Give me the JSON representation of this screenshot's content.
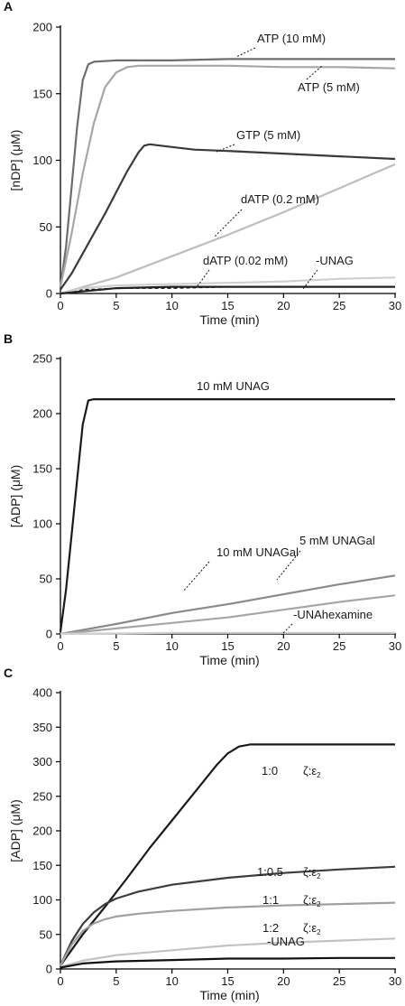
{
  "chart_data": [
    {
      "panel": "A",
      "type": "line",
      "xlabel": "Time (min)",
      "ylabel": "[nDP] (μM)",
      "xlim": [
        0,
        30
      ],
      "ylim": [
        0,
        200
      ],
      "xticks": [
        0,
        5,
        10,
        15,
        20,
        25,
        30
      ],
      "yticks": [
        0,
        50,
        100,
        150,
        200
      ],
      "series": [
        {
          "name": "ATP (10 mM)",
          "color": "#6e6e6e",
          "x": [
            0,
            0.5,
            1,
            1.5,
            2,
            2.5,
            3,
            5,
            10,
            15,
            20,
            25,
            30
          ],
          "y": [
            5,
            35,
            80,
            125,
            160,
            172,
            174,
            175,
            175,
            176,
            176,
            176,
            176
          ]
        },
        {
          "name": "ATP (5 mM)",
          "color": "#a6a6a6",
          "x": [
            0,
            1,
            2,
            3,
            4,
            5,
            6,
            7,
            10,
            15,
            20,
            25,
            30
          ],
          "y": [
            5,
            45,
            90,
            128,
            155,
            166,
            170,
            171,
            171,
            171,
            170,
            170,
            169
          ]
        },
        {
          "name": "GTP (5 mM)",
          "color": "#3a3a3a",
          "x": [
            0,
            1,
            2,
            3,
            4,
            5,
            6,
            7,
            7.5,
            8,
            9,
            10,
            12,
            15,
            20,
            25,
            30
          ],
          "y": [
            3,
            15,
            30,
            45,
            60,
            76,
            92,
            106,
            111,
            112,
            111,
            110,
            108,
            107,
            105,
            103,
            101
          ]
        },
        {
          "name": "dATP (0.2 mM)",
          "color": "#bdbdbd",
          "x": [
            0,
            5,
            10,
            15,
            20,
            25,
            30
          ],
          "y": [
            0,
            12,
            28,
            44,
            61,
            79,
            97
          ]
        },
        {
          "name": "dATP (0.02 mM)",
          "color": "#111111",
          "dashed": true,
          "x": [
            0,
            1,
            2,
            3,
            5,
            10,
            15,
            20,
            25,
            30
          ],
          "y": [
            0,
            2,
            3,
            3,
            4,
            4,
            5,
            5,
            5,
            5
          ]
        },
        {
          "name": "-UNAG",
          "color": "#cfcfcf",
          "x": [
            0,
            2,
            5,
            10,
            15,
            20,
            25,
            30
          ],
          "y": [
            0,
            4,
            6,
            7,
            8,
            9,
            11,
            12
          ]
        },
        {
          "name": "",
          "color": "#222222",
          "x": [
            0,
            5,
            10,
            15,
            20,
            25,
            30
          ],
          "y": [
            0,
            4,
            5,
            5,
            5,
            5,
            5
          ]
        }
      ],
      "annotations": [
        "ATP (10 mM)",
        "ATP (5 mM)",
        "GTP (5 mM)",
        "dATP (0.2 mM)",
        "dATP (0.02 mM)",
        "-UNAG"
      ]
    },
    {
      "panel": "B",
      "type": "line",
      "xlabel": "Time (min)",
      "ylabel": "[ADP] (μM)",
      "xlim": [
        0,
        30
      ],
      "ylim": [
        0,
        250
      ],
      "xticks": [
        0,
        5,
        10,
        15,
        20,
        25,
        30
      ],
      "yticks": [
        0,
        50,
        100,
        150,
        200,
        250
      ],
      "series": [
        {
          "name": "10 mM UNAG",
          "color": "#1a1a1a",
          "x": [
            0,
            0.5,
            1,
            1.5,
            2,
            2.5,
            3,
            5,
            10,
            15,
            20,
            25,
            30
          ],
          "y": [
            2,
            40,
            90,
            140,
            190,
            212,
            213,
            213,
            213,
            213,
            213,
            213,
            213
          ]
        },
        {
          "name": "5 mM UNAGal",
          "color": "#8a8a8a",
          "x": [
            0,
            5,
            10,
            15,
            20,
            25,
            30
          ],
          "y": [
            0,
            9,
            19,
            27,
            36,
            45,
            53
          ]
        },
        {
          "name": "10 mM UNAGal",
          "color": "#a6a6a6",
          "x": [
            0,
            5,
            10,
            15,
            20,
            25,
            30
          ],
          "y": [
            0,
            5,
            10,
            15,
            22,
            29,
            35
          ]
        },
        {
          "name": "-UNAhexamine",
          "color": "#d0d0d0",
          "x": [
            0,
            10,
            20,
            30
          ],
          "y": [
            0,
            1,
            1,
            1
          ]
        }
      ],
      "annotations": [
        "10 mM UNAG",
        "10 mM UNAGal",
        "5 mM UNAGal",
        "-UNAhexamine"
      ]
    },
    {
      "panel": "C",
      "type": "line",
      "xlabel": "Time (min)",
      "ylabel": "[ADP] (μM)",
      "xlim": [
        0,
        30
      ],
      "ylim": [
        0,
        400
      ],
      "xticks": [
        0,
        5,
        10,
        15,
        20,
        25,
        30
      ],
      "yticks": [
        0,
        50,
        100,
        150,
        200,
        250,
        300,
        350,
        400
      ],
      "series": [
        {
          "name": "1:0",
          "color": "#1a1a1a",
          "x": [
            0,
            2,
            4,
            6,
            8,
            10,
            12,
            14,
            15,
            16,
            17,
            18,
            20,
            25,
            30
          ],
          "y": [
            5,
            50,
            90,
            132,
            175,
            215,
            255,
            295,
            312,
            322,
            325,
            325,
            325,
            325,
            325
          ]
        },
        {
          "name": "1:0.5",
          "color": "#3c3c3c",
          "x": [
            0,
            1,
            2,
            3,
            4,
            5,
            7,
            10,
            15,
            20,
            25,
            30
          ],
          "y": [
            5,
            40,
            65,
            82,
            94,
            102,
            112,
            122,
            132,
            139,
            144,
            148
          ]
        },
        {
          "name": "1:1",
          "color": "#a0a0a0",
          "x": [
            0,
            1,
            2,
            3,
            4,
            5,
            7,
            10,
            15,
            20,
            25,
            30
          ],
          "y": [
            5,
            35,
            55,
            66,
            72,
            76,
            80,
            84,
            89,
            92,
            94,
            96
          ]
        },
        {
          "name": "1:2",
          "color": "#c2c2c2",
          "x": [
            0,
            2,
            5,
            10,
            15,
            20,
            25,
            30
          ],
          "y": [
            3,
            12,
            20,
            27,
            34,
            38,
            41,
            44
          ]
        },
        {
          "name": "-UNAG",
          "color": "#111111",
          "x": [
            0,
            2,
            5,
            10,
            15,
            20,
            25,
            30
          ],
          "y": [
            2,
            8,
            11,
            13,
            15,
            15,
            16,
            16
          ]
        }
      ],
      "annotations": [
        "1:0",
        "1:0.5",
        "1:1",
        "1:2",
        "-UNAG"
      ],
      "ratio_suffix": "ζ:ε",
      "ratio_subscript": "2"
    }
  ]
}
